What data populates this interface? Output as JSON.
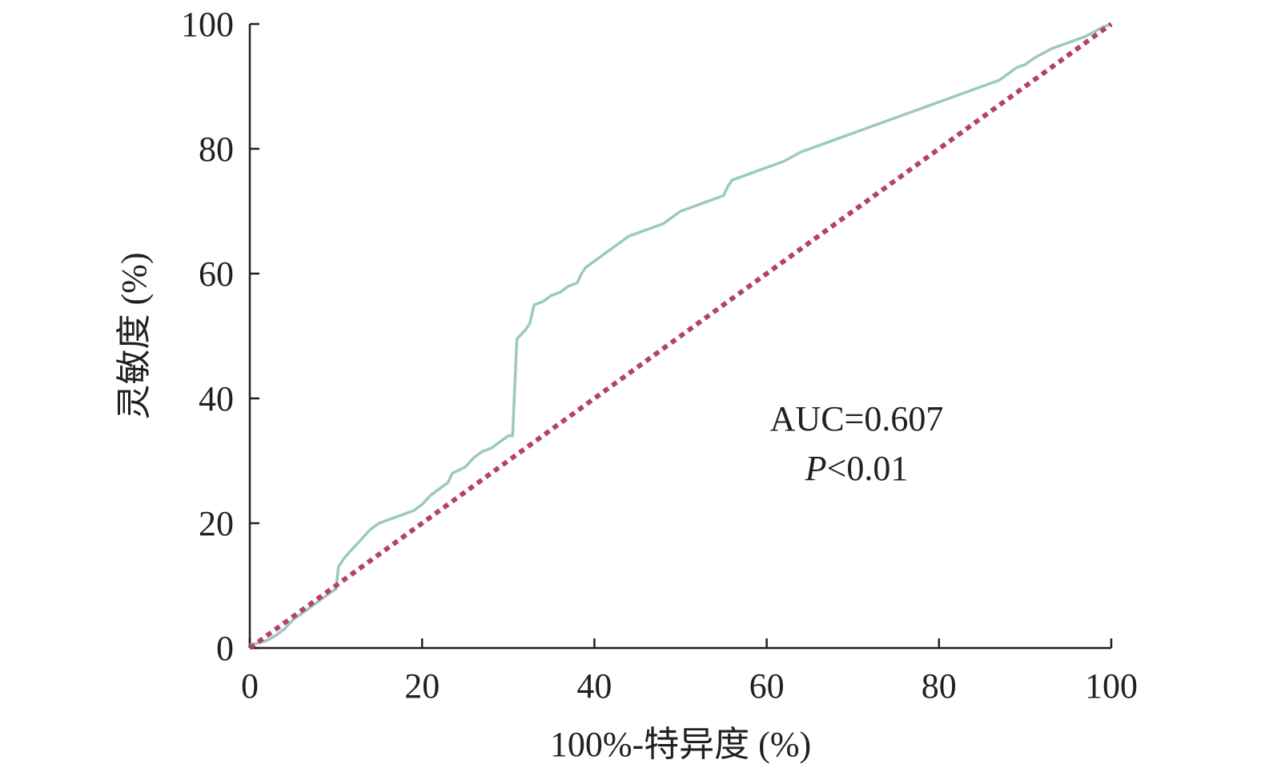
{
  "chart_data": {
    "type": "line",
    "title": "",
    "xlabel": "100%-特异度 (%)",
    "ylabel": "灵敏度 (%)",
    "xlim": [
      0,
      100
    ],
    "ylim": [
      0,
      100
    ],
    "x_ticks": [
      "0",
      "20",
      "40",
      "60",
      "80",
      "100"
    ],
    "y_ticks": [
      "0",
      "20",
      "40",
      "60",
      "80",
      "100"
    ],
    "grid": false,
    "legend": "none",
    "annotations": [
      "AUC=0.607",
      "<0.01"
    ],
    "annotation_prefix": "P",
    "series": [
      {
        "style": "solid",
        "color": "#9cc8c4",
        "x": [
          0,
          1,
          2,
          3,
          4,
          5,
          6,
          7,
          8,
          9,
          10,
          10.3,
          11,
          12,
          13,
          14,
          15,
          16,
          17,
          18,
          19,
          20,
          21,
          22,
          23,
          23.5,
          25,
          26,
          27,
          28,
          29,
          30,
          30.5,
          31,
          32,
          32.5,
          33,
          34,
          35,
          36,
          37,
          38,
          38.5,
          39,
          40,
          41,
          42,
          43,
          44,
          45,
          46,
          47,
          48,
          49,
          50,
          51,
          52,
          53,
          54,
          55,
          55.5,
          56,
          57,
          58,
          60,
          62,
          64,
          65,
          68,
          70,
          72,
          75,
          78,
          80,
          82,
          84,
          85,
          86,
          87,
          88,
          89,
          90,
          91,
          93,
          95,
          97,
          99,
          100
        ],
        "y": [
          0.5,
          0.8,
          1.2,
          2,
          3,
          4.5,
          5.5,
          6.5,
          7.5,
          8.5,
          9.5,
          13,
          14.5,
          16,
          17.5,
          19,
          20,
          20.5,
          21,
          21.5,
          22,
          23,
          24.5,
          25.5,
          26.5,
          28,
          29,
          30.5,
          31.5,
          32,
          33,
          34,
          34,
          49.5,
          51,
          52,
          55,
          55.5,
          56.5,
          57,
          58,
          58.5,
          60,
          61,
          62,
          63,
          64,
          65,
          66,
          66.5,
          67,
          67.5,
          68,
          69,
          70,
          70.5,
          71,
          71.5,
          72,
          72.5,
          74,
          75,
          75.5,
          76,
          77,
          78,
          79.5,
          80,
          81.5,
          82.5,
          83.5,
          85,
          86.5,
          87.5,
          88.5,
          89.5,
          90,
          90.5,
          91,
          92,
          93,
          93.5,
          94.5,
          96,
          97,
          98,
          99.5,
          100
        ]
      },
      {
        "style": "dashed",
        "color": "#b5416a",
        "x": [
          0,
          100
        ],
        "y": [
          0,
          100
        ]
      }
    ]
  }
}
